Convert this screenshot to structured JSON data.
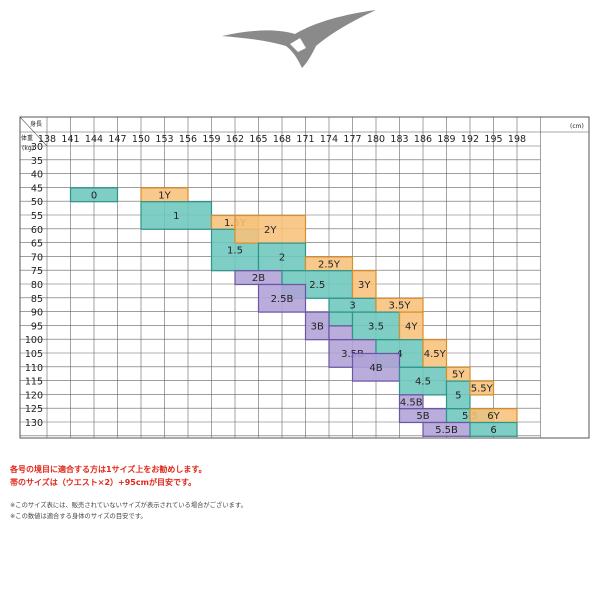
{
  "header": {
    "logo_icon": "mizuno-runbird-logo"
  },
  "size_chart": {
    "height_label": "身長",
    "weight_label": "体重",
    "height_unit": "(cm)",
    "weight_unit": "(kg)",
    "height_ticks": [
      "138",
      "141",
      "144",
      "147",
      "150",
      "153",
      "156",
      "159",
      "162",
      "165",
      "168",
      "171",
      "174",
      "177",
      "180",
      "183",
      "186",
      "189",
      "192",
      "195",
      "198"
    ],
    "weight_ticks": [
      "30",
      "35",
      "40",
      "45",
      "50",
      "55",
      "60",
      "65",
      "70",
      "75",
      "80",
      "85",
      "90",
      "95",
      "100",
      "105",
      "110",
      "115",
      "120",
      "125",
      "130"
    ],
    "colors": {
      "teal": "#6cc7bd",
      "teal_border": "#2f9489",
      "orange": "#f7c27b",
      "orange_border": "#d98f2b",
      "purple": "#b0a2d6",
      "purple_border": "#6a55a6"
    },
    "zones": [
      {
        "label": "0",
        "type": "teal",
        "cells": [
          [
            1,
            3,
            3,
            4
          ]
        ]
      },
      {
        "label": "1Y",
        "type": "orange",
        "cells": [
          [
            4,
            3,
            6,
            4
          ]
        ]
      },
      {
        "label": "1",
        "type": "teal",
        "cells": [
          [
            4,
            4,
            7,
            6
          ]
        ]
      },
      {
        "label": "1.5Y",
        "type": "orange",
        "cells": [
          [
            7,
            5,
            9,
            6
          ]
        ]
      },
      {
        "label": "1.5",
        "type": "teal",
        "cells": [
          [
            7,
            6,
            9,
            9
          ]
        ]
      },
      {
        "label": "2Y",
        "type": "orange",
        "cells": [
          [
            8,
            5,
            11,
            7
          ]
        ]
      },
      {
        "label": "2",
        "type": "teal",
        "cells": [
          [
            9,
            7,
            11,
            9
          ]
        ]
      },
      {
        "label": "2B",
        "type": "purple",
        "cells": [
          [
            8,
            9,
            10,
            10
          ]
        ]
      },
      {
        "label": "2.5Y",
        "type": "orange",
        "cells": [
          [
            11,
            8,
            13,
            9
          ]
        ]
      },
      {
        "label": "2.5",
        "type": "teal",
        "cells": [
          [
            10,
            9,
            13,
            11
          ]
        ]
      },
      {
        "label": "2.5B",
        "type": "purple",
        "cells": [
          [
            9,
            10,
            11,
            12
          ]
        ]
      },
      {
        "label": "3Y",
        "type": "orange",
        "cells": [
          [
            13,
            9,
            14,
            11
          ]
        ]
      },
      {
        "label": "3",
        "type": "teal",
        "cells": [
          [
            12,
            11,
            14,
            12
          ],
          [
            12,
            12,
            13,
            13
          ]
        ]
      },
      {
        "label": "3B",
        "type": "purple",
        "cells": [
          [
            11,
            12,
            12,
            14
          ],
          [
            12,
            13,
            13,
            14
          ]
        ]
      },
      {
        "label": "3.5Y",
        "type": "orange",
        "cells": [
          [
            14,
            11,
            16,
            12
          ]
        ]
      },
      {
        "label": "3.5",
        "type": "teal",
        "cells": [
          [
            13,
            12,
            15,
            14
          ]
        ]
      },
      {
        "label": "3.5B",
        "type": "purple",
        "cells": [
          [
            12,
            14,
            14,
            16
          ]
        ]
      },
      {
        "label": "4Y",
        "type": "orange",
        "cells": [
          [
            15,
            12,
            16,
            14
          ]
        ]
      },
      {
        "label": "4",
        "type": "teal",
        "cells": [
          [
            14,
            14,
            16,
            16
          ]
        ]
      },
      {
        "label": "4B",
        "type": "purple",
        "cells": [
          [
            13,
            15,
            15,
            17
          ]
        ]
      },
      {
        "label": "4.5Y",
        "type": "orange",
        "cells": [
          [
            16,
            14,
            17,
            16
          ]
        ]
      },
      {
        "label": "4.5",
        "type": "teal",
        "cells": [
          [
            15,
            16,
            17,
            18
          ]
        ]
      },
      {
        "label": "4.5B",
        "type": "purple",
        "cells": [
          [
            15,
            18,
            16,
            19
          ]
        ]
      },
      {
        "label": "5Y",
        "type": "orange",
        "cells": [
          [
            17,
            16,
            18,
            17
          ]
        ]
      },
      {
        "label": "5",
        "type": "teal",
        "cells": [
          [
            17,
            17,
            18,
            19
          ]
        ]
      },
      {
        "label": "5.5Y",
        "type": "orange",
        "cells": [
          [
            18,
            17,
            19,
            18
          ]
        ]
      },
      {
        "label": "5B",
        "type": "purple",
        "cells": [
          [
            15,
            19,
            17,
            20
          ]
        ]
      },
      {
        "label": "5.5",
        "type": "teal",
        "cells": [
          [
            17,
            19,
            19,
            20
          ]
        ]
      },
      {
        "label": "6Y",
        "type": "orange",
        "cells": [
          [
            18,
            19,
            20,
            20
          ]
        ]
      },
      {
        "label": "5.5B",
        "type": "purple",
        "cells": [
          [
            16,
            20,
            18,
            21
          ]
        ]
      },
      {
        "label": "6",
        "type": "teal",
        "cells": [
          [
            18,
            20,
            20,
            21
          ]
        ]
      }
    ]
  },
  "notes": {
    "red_line1": "各号の境目に適合する方は1サイズ上をお勧めします。",
    "red_line2": "帯のサイズは（ウエスト×2）+95cmが目安です。",
    "gray_line1": "※このサイズ表には、販売されていないサイズが表示されている場合がございます。",
    "gray_line2": "※この数値は適合する身体のサイズの目安です。"
  }
}
